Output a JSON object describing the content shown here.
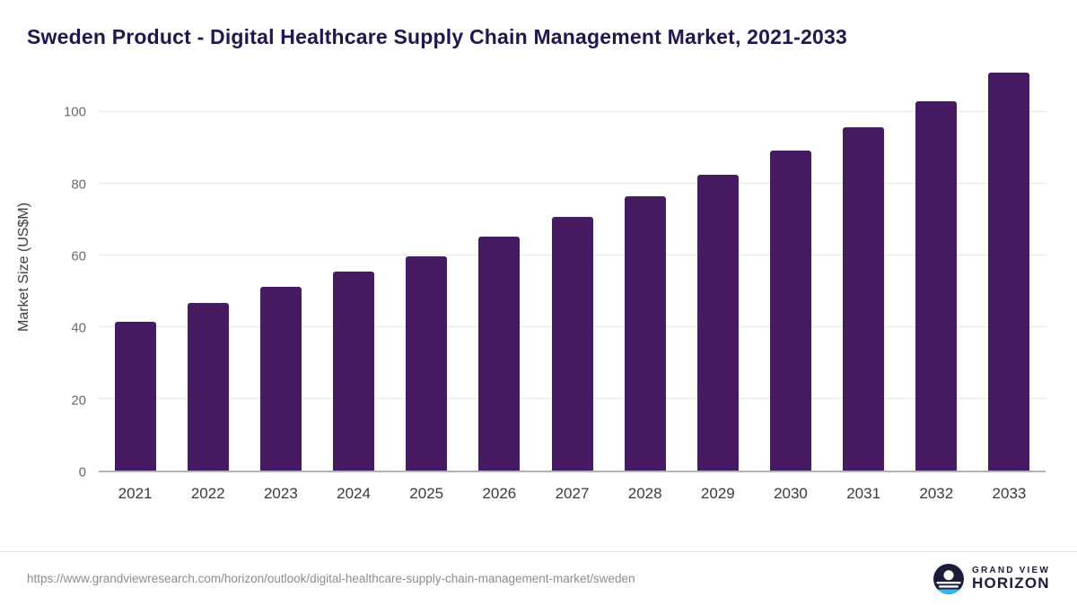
{
  "chart_data": {
    "type": "bar",
    "title": "Sweden Product - Digital Healthcare Supply Chain Management Market, 2021-2033",
    "xlabel": "",
    "ylabel": "Market Size (US$M)",
    "categories": [
      "2021",
      "2022",
      "2023",
      "2024",
      "2025",
      "2026",
      "2027",
      "2028",
      "2029",
      "2030",
      "2031",
      "2032",
      "2033"
    ],
    "values": [
      41.5,
      46.8,
      51.2,
      55.5,
      59.8,
      65.2,
      70.8,
      76.5,
      82.5,
      89.2,
      95.8,
      103.0,
      111.0
    ],
    "yticks": [
      0,
      20,
      40,
      60,
      80,
      100
    ],
    "ylim": [
      0,
      114
    ],
    "grid": "horizontal",
    "legend": "none",
    "bar_color": "#461b62"
  },
  "footer": {
    "source_url": "https://www.grandviewresearch.com/horizon/outlook/digital-healthcare-supply-chain-management-market/sweden",
    "brand_line1": "GRAND VIEW",
    "brand_line2": "HORIZON"
  },
  "colors": {
    "title": "#221550",
    "logo_navy": "#1b1c39",
    "logo_teal": "#35b6e9",
    "background": "#ffffff",
    "gridline": "#e6e6e6",
    "axis_baseline": "#b3b3b3"
  }
}
